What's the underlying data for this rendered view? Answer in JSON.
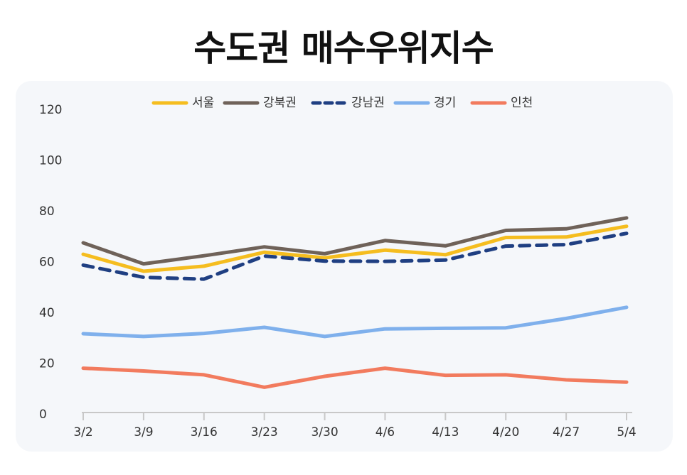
{
  "title": "수도권 매수우위지수",
  "chart_data": {
    "type": "line",
    "title": "수도권 매수우위지수",
    "xlabel": "",
    "ylabel": "",
    "categories": [
      "3/2",
      "3/9",
      "3/16",
      "3/23",
      "3/30",
      "4/6",
      "4/13",
      "4/20",
      "4/27",
      "5/4"
    ],
    "ylim": [
      0,
      120
    ],
    "yticks": [
      0,
      20,
      40,
      60,
      80,
      100,
      120
    ],
    "grid": false,
    "legend": "top",
    "series": [
      {
        "name": "서울",
        "color": "#f5bd1f",
        "dash": false,
        "values": [
          63.2,
          56.5,
          58.5,
          64.0,
          61.8,
          64.8,
          63.0,
          69.8,
          70.0,
          74.2
        ]
      },
      {
        "name": "강북권",
        "color": "#6f6259",
        "dash": false,
        "values": [
          67.7,
          59.4,
          62.6,
          66.1,
          63.4,
          68.6,
          66.5,
          72.6,
          73.2,
          77.5
        ]
      },
      {
        "name": "강남권",
        "color": "#1f3f82",
        "dash": true,
        "values": [
          58.9,
          54.1,
          53.4,
          62.5,
          60.5,
          60.4,
          60.9,
          66.4,
          67.0,
          71.4
        ]
      },
      {
        "name": "경기",
        "color": "#7fb0ec",
        "dash": false,
        "values": [
          31.9,
          30.8,
          32.0,
          34.4,
          30.8,
          33.8,
          34.0,
          34.2,
          37.9,
          42.3
        ]
      },
      {
        "name": "인천",
        "color": "#f27b5e",
        "dash": false,
        "values": [
          18.3,
          17.2,
          15.7,
          10.8,
          15.1,
          18.3,
          15.5,
          15.7,
          13.7,
          12.8
        ]
      }
    ]
  }
}
